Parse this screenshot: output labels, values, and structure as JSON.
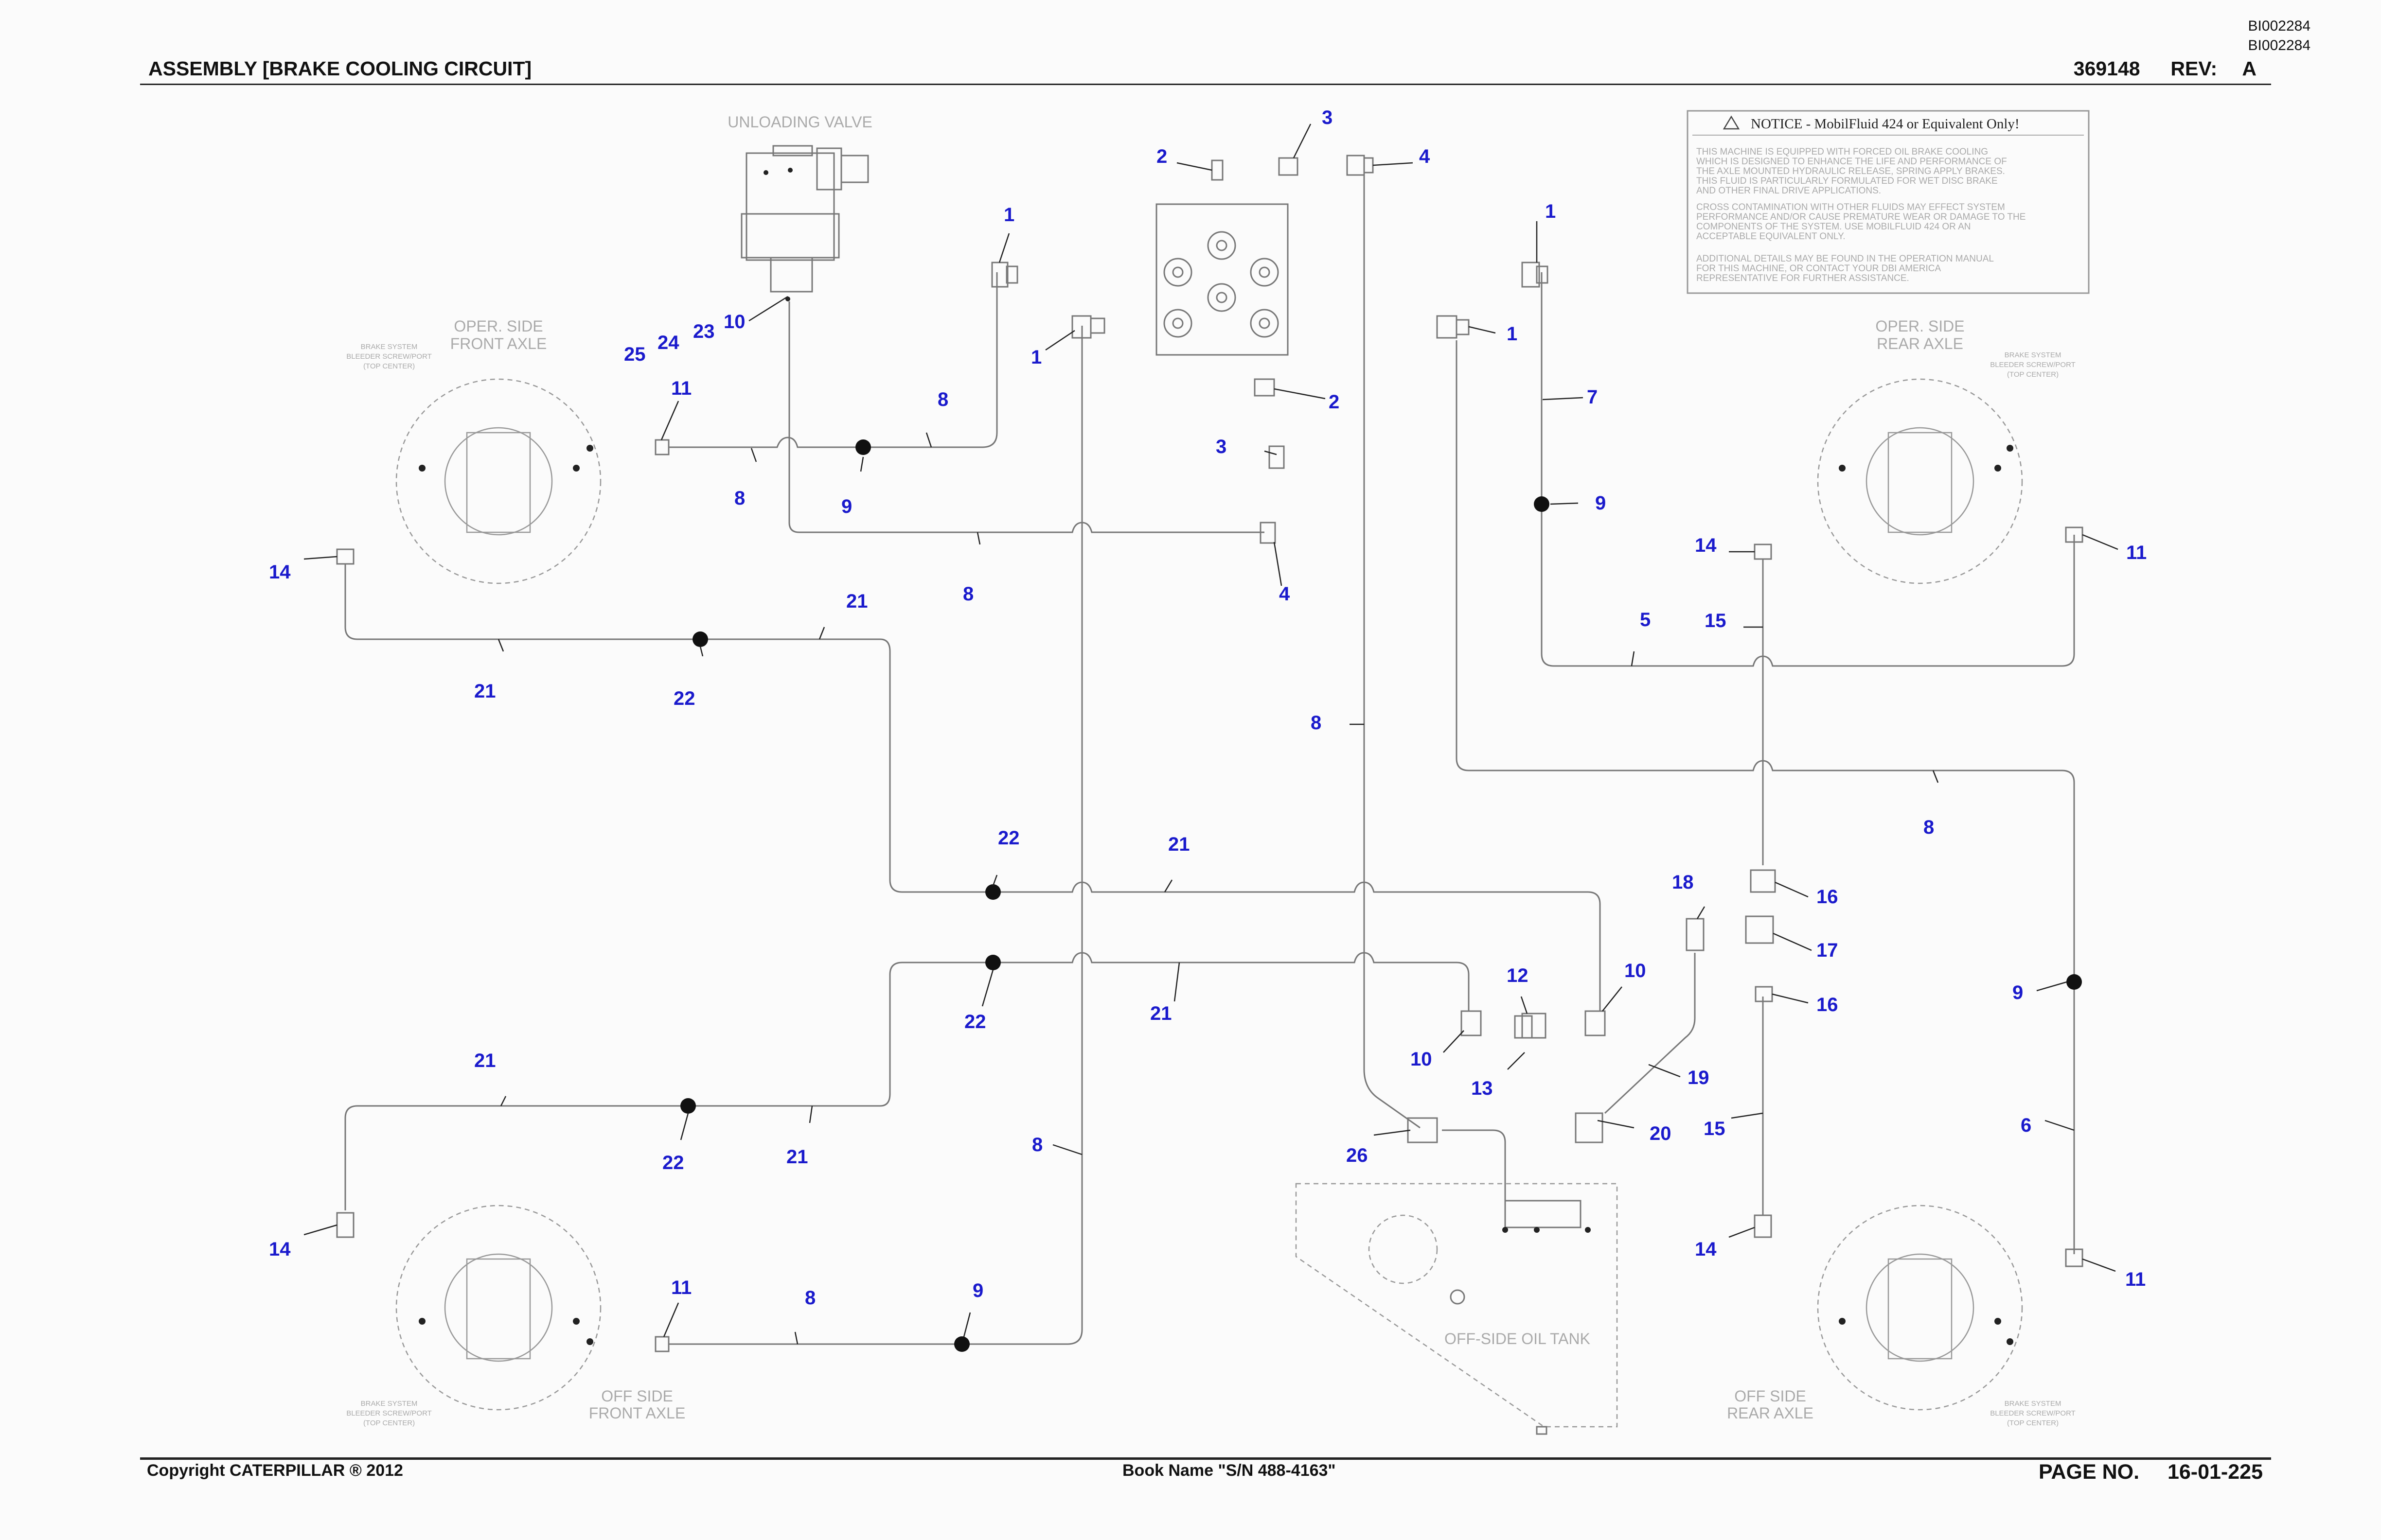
{
  "header": {
    "doc_id_1": "BI002284",
    "doc_id_2": "BI002284",
    "title": "ASSEMBLY [BRAKE COOLING CIRCUIT]",
    "part_number": "369148",
    "rev_label": "REV:",
    "rev_value": "A"
  },
  "footer": {
    "copyright": "Copyright CATERPILLAR ® 2012",
    "book_name": "Book Name \"S/N 488-4163\"",
    "page_label": "PAGE NO.",
    "page_value": "16-01-225"
  },
  "notice": {
    "title": "NOTICE - MobilFluid 424 or Equivalent Only!",
    "para1": [
      "THIS MACHINE IS EQUIPPED WITH FORCED OIL BRAKE COOLING",
      "WHICH IS DESIGNED TO ENHANCE THE LIFE AND PERFORMANCE OF",
      "THE AXLE MOUNTED HYDRAULIC RELEASE, SPRING APPLY BRAKES.",
      "THIS FLUID IS PARTICULARLY FORMULATED FOR WET DISC BRAKE",
      "AND OTHER FINAL DRIVE APPLICATIONS."
    ],
    "para2": [
      "CROSS CONTAMINATION WITH OTHER FLUIDS MAY EFFECT SYSTEM",
      "PERFORMANCE AND/OR CAUSE PREMATURE WEAR OR DAMAGE TO THE",
      "COMPONENTS OF THE SYSTEM. USE MOBILFLUID 424 OR AN",
      "ACCEPTABLE EQUIVALENT ONLY."
    ],
    "para3": [
      "ADDITIONAL DETAILS MAY BE FOUND IN THE OPERATION MANUAL",
      "FOR THIS MACHINE, OR CONTACT YOUR DBI AMERICA",
      "REPRESENTATIVE FOR FURTHER ASSISTANCE."
    ]
  },
  "labels": {
    "unloading_valve": "UNLOADING VALVE",
    "front_top_1": "OPER. SIDE",
    "front_top_2": "FRONT AXLE",
    "rear_top_1": "OPER. SIDE",
    "rear_top_2": "REAR AXLE",
    "front_bot_1": "OFF SIDE",
    "front_bot_2": "FRONT AXLE",
    "rear_bot_1": "OFF SIDE",
    "rear_bot_2": "REAR AXLE",
    "tank": "OFF-SIDE OIL TANK",
    "bleeder_1": "BRAKE SYSTEM",
    "bleeder_2": "BLEEDER SCREW/PORT",
    "bleeder_3": "(TOP CENTER)"
  },
  "callouts": [
    {
      "id": "c0",
      "text": "3"
    },
    {
      "id": "c1",
      "text": "2"
    },
    {
      "id": "c2",
      "text": "4"
    },
    {
      "id": "c3",
      "text": "1"
    },
    {
      "id": "c4",
      "text": "10"
    },
    {
      "id": "c5",
      "text": "23"
    },
    {
      "id": "c6",
      "text": "24"
    },
    {
      "id": "c7",
      "text": "25"
    },
    {
      "id": "c8",
      "text": "11"
    },
    {
      "id": "c9",
      "text": "8"
    },
    {
      "id": "c10",
      "text": "1"
    },
    {
      "id": "c11",
      "text": "8"
    },
    {
      "id": "c12",
      "text": "9"
    },
    {
      "id": "c13",
      "text": "8"
    },
    {
      "id": "c14",
      "text": "4"
    },
    {
      "id": "c15",
      "text": "2"
    },
    {
      "id": "c16",
      "text": "3"
    },
    {
      "id": "c17",
      "text": "1"
    },
    {
      "id": "c18",
      "text": "1"
    },
    {
      "id": "c19",
      "text": "7"
    },
    {
      "id": "c20",
      "text": "9"
    },
    {
      "id": "c21",
      "text": "14"
    },
    {
      "id": "c22",
      "text": "11"
    },
    {
      "id": "c23",
      "text": "5"
    },
    {
      "id": "c24",
      "text": "15"
    },
    {
      "id": "c25",
      "text": "14"
    },
    {
      "id": "c26",
      "text": "21"
    },
    {
      "id": "c27",
      "text": "21"
    },
    {
      "id": "c28",
      "text": "22"
    },
    {
      "id": "c29",
      "text": "8"
    },
    {
      "id": "c30",
      "text": "8"
    },
    {
      "id": "c31",
      "text": "22"
    },
    {
      "id": "c32",
      "text": "21"
    },
    {
      "id": "c33",
      "text": "18"
    },
    {
      "id": "c34",
      "text": "16"
    },
    {
      "id": "c35",
      "text": "17"
    },
    {
      "id": "c36",
      "text": "16"
    },
    {
      "id": "c37",
      "text": "9"
    },
    {
      "id": "c38",
      "text": "12"
    },
    {
      "id": "c39",
      "text": "10"
    },
    {
      "id": "c40",
      "text": "22"
    },
    {
      "id": "c41",
      "text": "21"
    },
    {
      "id": "c42",
      "text": "10"
    },
    {
      "id": "c43",
      "text": "13"
    },
    {
      "id": "c44",
      "text": "19"
    },
    {
      "id": "c45",
      "text": "21"
    },
    {
      "id": "c46",
      "text": "22"
    },
    {
      "id": "c47",
      "text": "21"
    },
    {
      "id": "c48",
      "text": "8"
    },
    {
      "id": "c49",
      "text": "26"
    },
    {
      "id": "c50",
      "text": "20"
    },
    {
      "id": "c51",
      "text": "15"
    },
    {
      "id": "c52",
      "text": "6"
    },
    {
      "id": "c53",
      "text": "14"
    },
    {
      "id": "c54",
      "text": "14"
    },
    {
      "id": "c55",
      "text": "11"
    },
    {
      "id": "c56",
      "text": "8"
    },
    {
      "id": "c57",
      "text": "9"
    },
    {
      "id": "c58",
      "text": "11"
    }
  ]
}
